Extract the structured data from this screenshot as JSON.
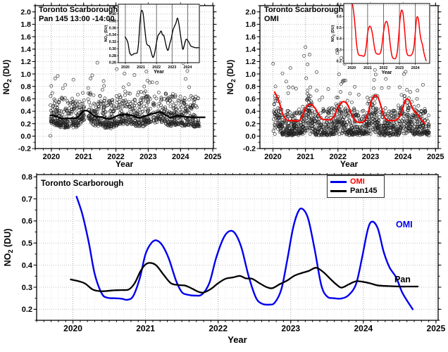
{
  "figure": {
    "background": "#ffffff"
  },
  "colors": {
    "omi_blue": "#0000ee",
    "fit_red": "#fe0000",
    "line_black": "#000000",
    "scatter_stroke": "#222222",
    "grid_major": "#c4c4c4",
    "grid_minor": "#e7e7e7",
    "grid_year": "#a8a8a8",
    "inset_year_line": "#4a4a4a"
  },
  "panels": {
    "pan": {
      "title_line1": "Toronto Scarborough",
      "title_line2": "Pan 145 13:00 -14:00"
    },
    "omi": {
      "title_line1": "Toronto Scarborough",
      "title_line2": "OMI"
    },
    "compare": {
      "title": "Toronto Scarborough",
      "legend": [
        {
          "label": "OMI",
          "line_color": "#0000ee",
          "text_color": "#fe0000"
        },
        {
          "label": "Pan145",
          "line_color": "#000000",
          "text_color": "#000000"
        }
      ],
      "callout_omi": "OMI",
      "callout_pan": "Pan"
    }
  },
  "chart_data": {
    "series": {
      "pan_monthly": [
        [
          2019.97,
          0.335
        ],
        [
          2020.08,
          0.327
        ],
        [
          2020.17,
          0.316
        ],
        [
          2020.27,
          0.29
        ],
        [
          2020.37,
          0.282
        ],
        [
          2020.47,
          0.283
        ],
        [
          2020.57,
          0.286
        ],
        [
          2020.67,
          0.287
        ],
        [
          2020.77,
          0.29
        ],
        [
          2020.85,
          0.318
        ],
        [
          2020.93,
          0.372
        ],
        [
          2021.0,
          0.403
        ],
        [
          2021.07,
          0.41
        ],
        [
          2021.15,
          0.398
        ],
        [
          2021.25,
          0.356
        ],
        [
          2021.35,
          0.318
        ],
        [
          2021.45,
          0.31
        ],
        [
          2021.55,
          0.307
        ],
        [
          2021.65,
          0.292
        ],
        [
          2021.73,
          0.279
        ],
        [
          2021.8,
          0.276
        ],
        [
          2021.9,
          0.292
        ],
        [
          2022.0,
          0.318
        ],
        [
          2022.1,
          0.338
        ],
        [
          2022.2,
          0.344
        ],
        [
          2022.3,
          0.351
        ],
        [
          2022.38,
          0.34
        ],
        [
          2022.47,
          0.338
        ],
        [
          2022.57,
          0.318
        ],
        [
          2022.67,
          0.3
        ],
        [
          2022.75,
          0.296
        ],
        [
          2022.85,
          0.314
        ],
        [
          2022.95,
          0.33
        ],
        [
          2023.05,
          0.352
        ],
        [
          2023.15,
          0.364
        ],
        [
          2023.25,
          0.374
        ],
        [
          2023.35,
          0.388
        ],
        [
          2023.45,
          0.368
        ],
        [
          2023.55,
          0.336
        ],
        [
          2023.63,
          0.312
        ],
        [
          2023.7,
          0.298
        ],
        [
          2023.8,
          0.313
        ],
        [
          2023.9,
          0.327
        ],
        [
          2024.0,
          0.324
        ],
        [
          2024.1,
          0.317
        ],
        [
          2024.2,
          0.308
        ],
        [
          2024.35,
          0.305
        ],
        [
          2024.5,
          0.303
        ],
        [
          2024.65,
          0.303
        ],
        [
          2024.75,
          0.303
        ]
      ],
      "omi_monthly": [
        [
          2020.05,
          0.71
        ],
        [
          2020.13,
          0.63
        ],
        [
          2020.22,
          0.5
        ],
        [
          2020.3,
          0.36
        ],
        [
          2020.4,
          0.27
        ],
        [
          2020.48,
          0.252
        ],
        [
          2020.58,
          0.25
        ],
        [
          2020.67,
          0.248
        ],
        [
          2020.75,
          0.243
        ],
        [
          2020.83,
          0.26
        ],
        [
          2020.92,
          0.34
        ],
        [
          2021.0,
          0.45
        ],
        [
          2021.08,
          0.5
        ],
        [
          2021.15,
          0.512
        ],
        [
          2021.23,
          0.49
        ],
        [
          2021.32,
          0.43
        ],
        [
          2021.42,
          0.33
        ],
        [
          2021.5,
          0.278
        ],
        [
          2021.58,
          0.266
        ],
        [
          2021.68,
          0.262
        ],
        [
          2021.78,
          0.268
        ],
        [
          2021.88,
          0.32
        ],
        [
          2021.97,
          0.43
        ],
        [
          2022.07,
          0.52
        ],
        [
          2022.15,
          0.553
        ],
        [
          2022.23,
          0.545
        ],
        [
          2022.32,
          0.48
        ],
        [
          2022.42,
          0.35
        ],
        [
          2022.52,
          0.253
        ],
        [
          2022.6,
          0.226
        ],
        [
          2022.7,
          0.221
        ],
        [
          2022.78,
          0.23
        ],
        [
          2022.87,
          0.29
        ],
        [
          2022.95,
          0.42
        ],
        [
          2023.03,
          0.565
        ],
        [
          2023.1,
          0.64
        ],
        [
          2023.16,
          0.655
        ],
        [
          2023.24,
          0.61
        ],
        [
          2023.33,
          0.47
        ],
        [
          2023.42,
          0.31
        ],
        [
          2023.5,
          0.258
        ],
        [
          2023.6,
          0.25
        ],
        [
          2023.7,
          0.249
        ],
        [
          2023.8,
          0.265
        ],
        [
          2023.9,
          0.315
        ],
        [
          2023.98,
          0.43
        ],
        [
          2024.06,
          0.56
        ],
        [
          2024.12,
          0.597
        ],
        [
          2024.2,
          0.565
        ],
        [
          2024.28,
          0.46
        ],
        [
          2024.36,
          0.39
        ],
        [
          2024.45,
          0.345
        ],
        [
          2024.53,
          0.28
        ],
        [
          2024.6,
          0.24
        ],
        [
          2024.68,
          0.2
        ]
      ]
    },
    "charts": [
      {
        "id": "pan",
        "type": "scatter",
        "title": "Toronto Scarborough Pan 145 13:00 -14:00",
        "xlabel": "Year",
        "ylabel": "NO_2 (DU)",
        "xlim": [
          2019.5,
          2025.02
        ],
        "ylim": [
          -0.2,
          2.1
        ],
        "xticks": [
          2020,
          2021,
          2022,
          2023,
          2024,
          2025
        ],
        "ytick_min": -0.2,
        "ytick_max": 2.0,
        "ytick_step": 0.2,
        "ytick_decimals": 1,
        "x_minor": 0.25,
        "y_minor": 0.1,
        "grid": true,
        "scatter": {
          "seed": 20,
          "n": 1050,
          "x_start": 2019.97,
          "x_end": 2024.6,
          "gap": [
            2021.02,
            2021.14
          ],
          "y_cap": 1.22,
          "mode": "pan",
          "extra_points": [
            [
              2019.97,
              0.005
            ]
          ]
        },
        "line": {
          "series": "pan_monthly",
          "color": "#000000",
          "width": 2.3
        },
        "inset": {
          "xlim": [
            2019.55,
            2024.75
          ],
          "ylim": [
            0.26,
            0.428
          ],
          "xticks": [
            2020,
            2021,
            2022,
            2023,
            2024
          ],
          "ytick_min": 0.26,
          "ytick_max": 0.42,
          "ytick_step": 0.02,
          "ytick_decimals": 2,
          "xlabel": "Year",
          "ylabel": "NO_2 (DU)",
          "line": {
            "series": "pan_monthly",
            "color": "#000000",
            "width": 1.3
          }
        }
      },
      {
        "id": "omi",
        "type": "scatter",
        "title": "Toronto Scarborough OMI",
        "xlabel": "Year",
        "ylabel": "NO_2 (DU)",
        "xlim": [
          2019.6,
          2025.08
        ],
        "ylim": [
          -0.2,
          2.1
        ],
        "xticks": [
          2020,
          2021,
          2022,
          2023,
          2024,
          2025
        ],
        "ytick_min": -0.2,
        "ytick_max": 2.0,
        "ytick_step": 0.2,
        "ytick_decimals": 1,
        "x_minor": 0.25,
        "y_minor": 0.1,
        "grid": true,
        "scatter": {
          "seed": 11,
          "n": 1280,
          "x_start": 2020.0,
          "x_end": 2024.8,
          "y_cap": 2.04,
          "mode": "omi",
          "extra_points": []
        },
        "line": {
          "series": "omi_monthly",
          "color": "#fe0000",
          "width": 2.1
        },
        "inset": {
          "xlim": [
            2019.5,
            2024.9
          ],
          "ylim": [
            0.18,
            0.715
          ],
          "xticks": [
            2020,
            2021,
            2022,
            2023,
            2024
          ],
          "ytick_min": 0.2,
          "ytick_max": 0.7,
          "ytick_step": 0.1,
          "ytick_decimals": 1,
          "xlabel": "Year",
          "ylabel": "NO_2 (DU)",
          "line": {
            "series": "omi_monthly",
            "color": "#fe0000",
            "width": 1.5
          }
        }
      },
      {
        "id": "cmp",
        "type": "line",
        "title": "Toronto Scarborough",
        "xlabel": "Year",
        "ylabel": "NO_2 (DU)",
        "xlim": [
          2019.5,
          2025.03
        ],
        "ylim": [
          0.15,
          0.81
        ],
        "xticks": [
          2020,
          2021,
          2022,
          2023,
          2024,
          2025
        ],
        "ytick_min": 0.2,
        "ytick_max": 0.8,
        "ytick_step": 0.1,
        "ytick_decimals": 1,
        "x_minor": 0.1,
        "y_minor": 0.05,
        "grid": true,
        "legend_position": "top-right",
        "lines": [
          {
            "name": "OMI",
            "series": "omi_monthly",
            "color": "#0000ee",
            "width": 2.4
          },
          {
            "name": "Pan145",
            "series": "pan_monthly",
            "color": "#000000",
            "width": 2.3
          }
        ]
      }
    ]
  }
}
